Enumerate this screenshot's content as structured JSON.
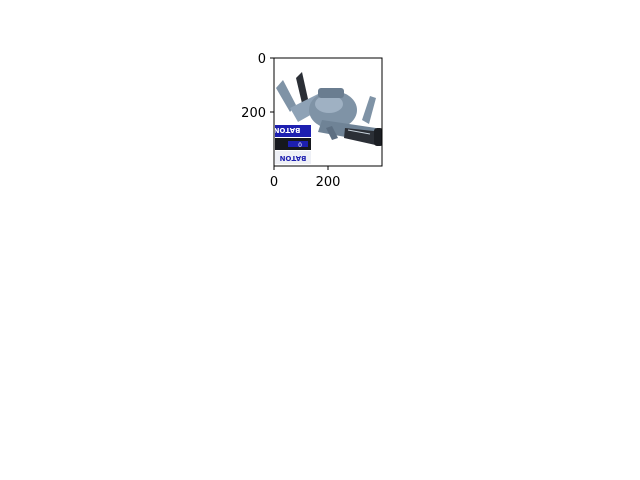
{
  "chart_data": {
    "type": "image",
    "title": "",
    "xlabel": "",
    "ylabel": "",
    "xlim": [
      0,
      400
    ],
    "ylim": [
      400,
      0
    ],
    "x_ticks": [
      0,
      200
    ],
    "y_ticks": [
      0,
      200
    ],
    "x_tick_labels": [
      "0",
      "200"
    ],
    "y_tick_labels": [
      "0",
      "200"
    ],
    "grid": false,
    "image_content": {
      "subject": "grey toy launcher",
      "label_texts": [
        "BATON",
        "BATON",
        "0"
      ],
      "colors": {
        "body": "#7f93a6",
        "dark": "#2b2f36",
        "label": "#1d1fb0",
        "background": "#ffffff"
      }
    }
  }
}
